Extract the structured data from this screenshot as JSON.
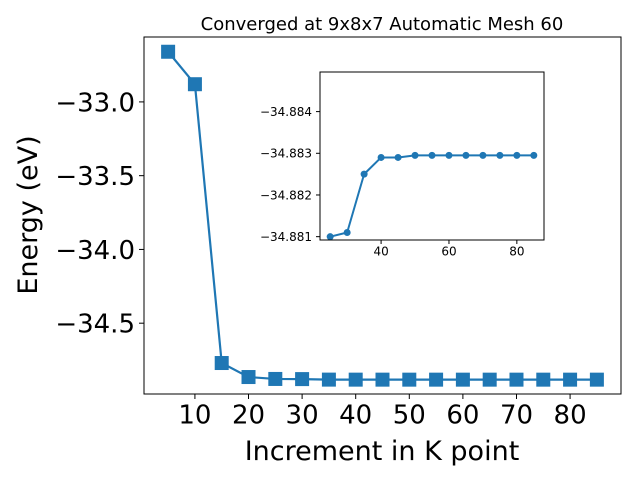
{
  "chart_data": [
    {
      "type": "line",
      "title": "Converged at 9x8x7 Automatic Mesh 60",
      "xlabel": "Increment in K point",
      "ylabel": "Energy (eV)",
      "xlim": [
        0.5,
        89.5
      ],
      "ylim": [
        -34.98,
        -32.56
      ],
      "xticks": [
        10,
        20,
        30,
        40,
        50,
        60,
        70,
        80
      ],
      "yticks": [
        -33.0,
        -33.5,
        -34.0,
        -34.5
      ],
      "ytick_labels": [
        "−33.0",
        "−33.5",
        "−34.0",
        "−34.5"
      ],
      "grid": false,
      "marker": "square",
      "color": "#1f77b4",
      "series": [
        {
          "x": [
            5,
            10,
            15,
            20,
            25,
            30,
            35,
            40,
            45,
            50,
            55,
            60,
            65,
            70,
            75,
            80,
            85
          ],
          "y": [
            -32.66,
            -32.88,
            -34.77,
            -34.865,
            -34.878,
            -34.879,
            -34.8825,
            -34.8827,
            -34.8827,
            -34.88275,
            -34.88275,
            -34.88275,
            -34.88275,
            -34.88275,
            -34.88275,
            -34.88275,
            -34.88275
          ]
        }
      ]
    },
    {
      "type": "line",
      "title": "",
      "xlabel": "",
      "ylabel": "",
      "xlim": [
        22,
        88
      ],
      "ylim": [
        -34.88092,
        -34.88495
      ],
      "xticks": [
        40,
        60,
        80
      ],
      "yticks": [
        -34.884,
        -34.883,
        -34.882,
        -34.881
      ],
      "ytick_labels": [
        "−34.884",
        "−34.883",
        "−34.882",
        "−34.881"
      ],
      "grid": false,
      "marker": "circle",
      "color": "#1f77b4",
      "series": [
        {
          "x": [
            25,
            30,
            35,
            40,
            45,
            50,
            55,
            60,
            65,
            70,
            75,
            80,
            85
          ],
          "y": [
            -34.881,
            -34.8811,
            -34.8825,
            -34.8829,
            -34.8829,
            -34.88295,
            -34.88295,
            -34.88295,
            -34.88295,
            -34.88295,
            -34.88295,
            -34.88295,
            -34.88295
          ]
        }
      ]
    }
  ]
}
